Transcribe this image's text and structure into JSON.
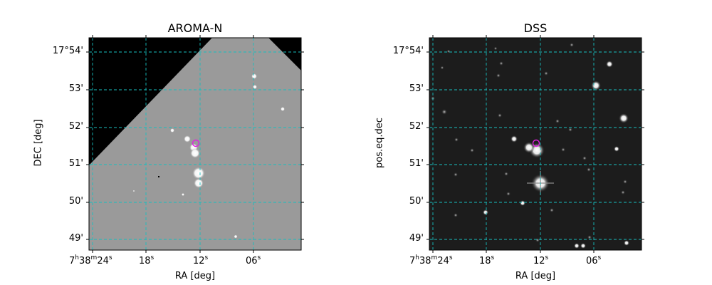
{
  "left": {
    "title": "AROMA-N",
    "xlabel": "RA [deg]",
    "ylabel": "DEC [deg]"
  },
  "right": {
    "title": "DSS",
    "xlabel": "RA [deg]",
    "ylabel": "pos.eq.dec"
  },
  "yticks": [
    "17°54'",
    "53'",
    "52'",
    "51'",
    "50'",
    "49'"
  ],
  "xticks": [
    {
      "main": "7",
      "h": "h",
      "m": "38",
      "mu": "m",
      "s": "24",
      "su": "s"
    },
    {
      "main": "",
      "s": "18",
      "su": "s"
    },
    {
      "main": "",
      "s": "12",
      "su": "s"
    },
    {
      "main": "",
      "s": "06",
      "su": "s"
    }
  ],
  "colors": {
    "grid": "#17bfbf",
    "marker": "#e020e0",
    "aroma_bg": "#9a9a9a",
    "dss_bg": "#1c1c1c"
  }
}
